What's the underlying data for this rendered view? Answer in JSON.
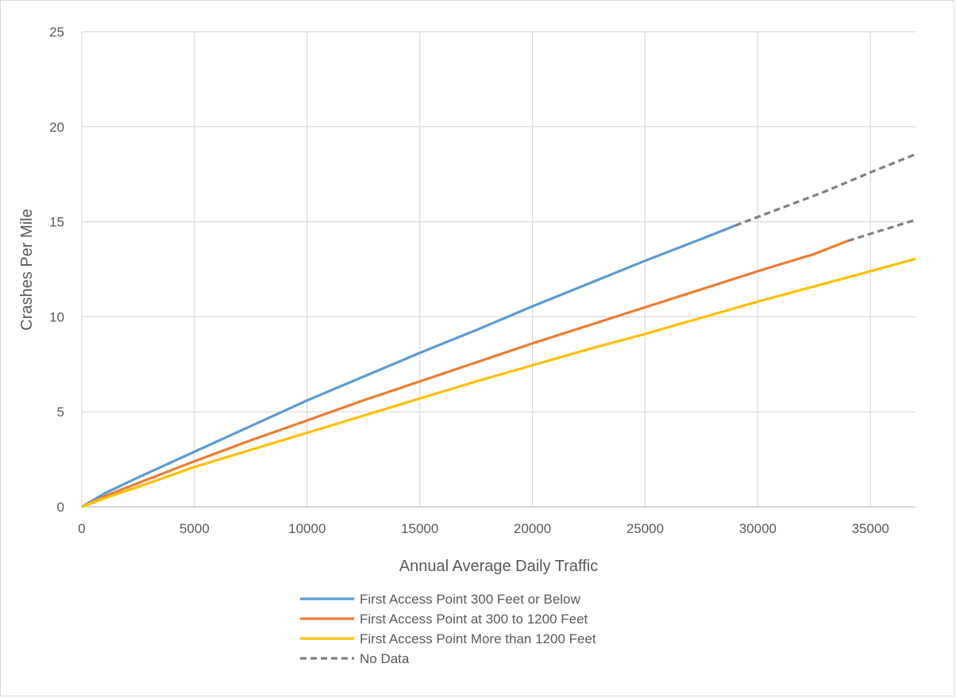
{
  "chart_data": {
    "type": "line",
    "title": "",
    "xlabel": "Annual Average Daily Traffic",
    "ylabel": "Crashes Per Mile",
    "xlim": [
      0,
      37000
    ],
    "ylim": [
      0,
      25
    ],
    "x_ticks": [
      0,
      5000,
      10000,
      15000,
      20000,
      25000,
      30000,
      35000
    ],
    "y_ticks": [
      0,
      5,
      10,
      15,
      20,
      25
    ],
    "grid": true,
    "legend_position": "bottom",
    "series": [
      {
        "name": "First Access Point 300 Feet or Below",
        "color": "#5b9bd5",
        "style": "solid",
        "points": [
          [
            0,
            0
          ],
          [
            1000,
            0.7
          ],
          [
            2500,
            1.55
          ],
          [
            5000,
            2.9
          ],
          [
            7500,
            4.25
          ],
          [
            10000,
            5.6
          ],
          [
            12500,
            6.85
          ],
          [
            15000,
            8.1
          ],
          [
            17500,
            9.3
          ],
          [
            20000,
            10.55
          ],
          [
            22500,
            11.75
          ],
          [
            25000,
            12.95
          ],
          [
            27500,
            14.1
          ],
          [
            29000,
            14.8
          ]
        ]
      },
      {
        "name": "First Access Point at 300 to 1200 Feet",
        "color": "#ed7d31",
        "style": "solid",
        "points": [
          [
            0,
            0
          ],
          [
            1000,
            0.55
          ],
          [
            2500,
            1.25
          ],
          [
            5000,
            2.4
          ],
          [
            7500,
            3.5
          ],
          [
            10000,
            4.55
          ],
          [
            12500,
            5.6
          ],
          [
            15000,
            6.6
          ],
          [
            17500,
            7.6
          ],
          [
            20000,
            8.6
          ],
          [
            22500,
            9.55
          ],
          [
            25000,
            10.5
          ],
          [
            27500,
            11.45
          ],
          [
            30000,
            12.4
          ],
          [
            32500,
            13.3
          ],
          [
            34000,
            14.0
          ]
        ]
      },
      {
        "name": "First Access Point More than 1200 Feet",
        "color": "#ffc000",
        "style": "solid",
        "points": [
          [
            0,
            0
          ],
          [
            1000,
            0.45
          ],
          [
            2500,
            1.05
          ],
          [
            5000,
            2.1
          ],
          [
            7500,
            3.0
          ],
          [
            10000,
            3.9
          ],
          [
            12500,
            4.8
          ],
          [
            15000,
            5.7
          ],
          [
            17500,
            6.6
          ],
          [
            20000,
            7.45
          ],
          [
            22500,
            8.3
          ],
          [
            25000,
            9.1
          ],
          [
            27500,
            9.95
          ],
          [
            30000,
            10.8
          ],
          [
            32500,
            11.6
          ],
          [
            35000,
            12.4
          ],
          [
            37000,
            13.05
          ]
        ]
      },
      {
        "name": "No Data",
        "color": "#808080",
        "style": "dashed",
        "segments": [
          [
            [
              29000,
              14.8
            ],
            [
              31000,
              15.7
            ],
            [
              33000,
              16.6
            ],
            [
              35000,
              17.6
            ],
            [
              37000,
              18.55
            ]
          ],
          [
            [
              34000,
              14.0
            ],
            [
              35500,
              14.55
            ],
            [
              37000,
              15.1
            ]
          ]
        ]
      }
    ]
  }
}
